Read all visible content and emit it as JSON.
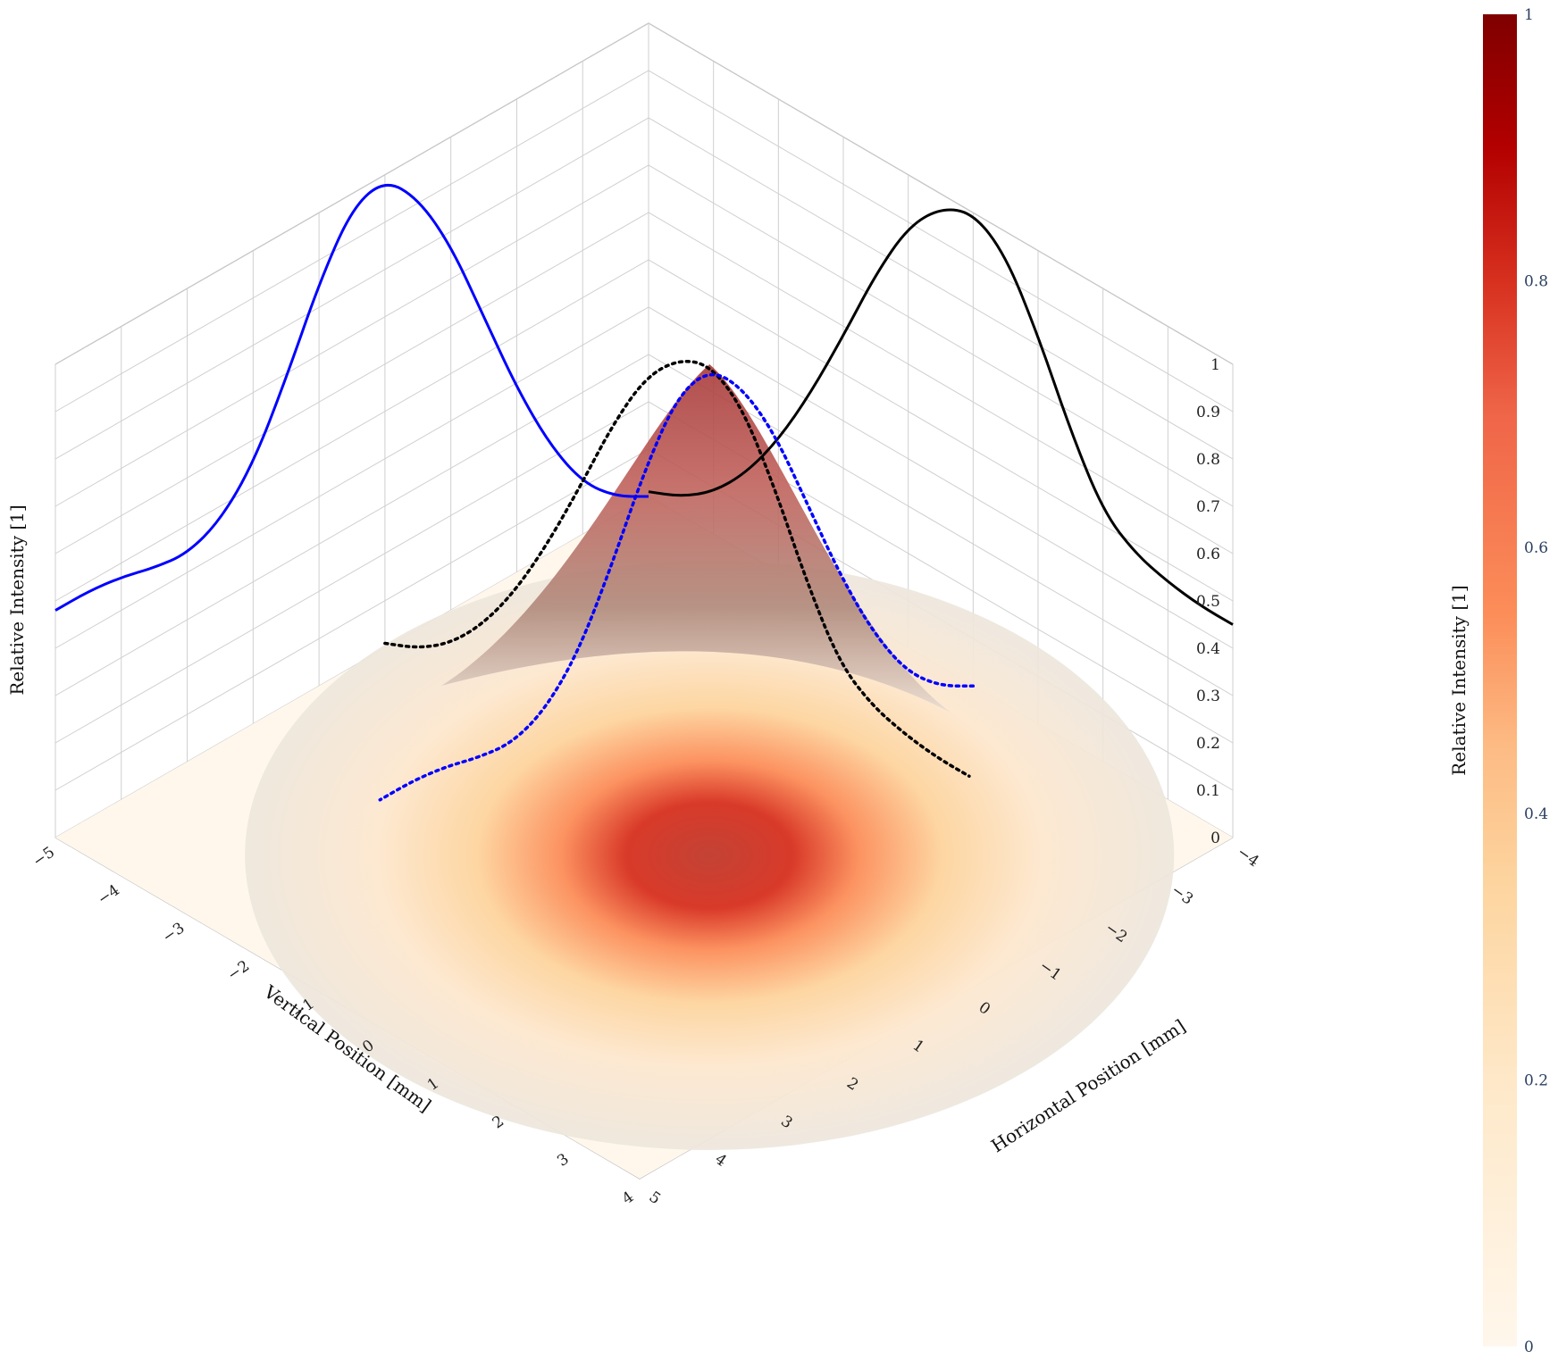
{
  "chart_data": {
    "type": "surface",
    "colorscale": "OrRd",
    "colors": {
      "vertical_profile": "#000000",
      "horizontal_profile": "#0000ff",
      "surface_shade": "#b06a60"
    },
    "axes": {
      "x": {
        "title": "Horizontal Position [mm]",
        "range": [
          -4,
          5
        ],
        "ticks": [
          "−4",
          "−3",
          "−2",
          "−1",
          "0",
          "1",
          "2",
          "3",
          "4",
          "5"
        ]
      },
      "y": {
        "title": "Vertical Position [mm]",
        "range": [
          -5,
          4
        ],
        "ticks": [
          "−5",
          "−4",
          "−3",
          "−2",
          "−1",
          "0",
          "1",
          "2",
          "3",
          "4"
        ]
      },
      "z": {
        "title": "Relative Intensity [1]",
        "range": [
          0,
          1
        ],
        "ticks": [
          "0",
          "0.1",
          "0.2",
          "0.3",
          "0.4",
          "0.5",
          "0.6",
          "0.7",
          "0.8",
          "0.9",
          "1"
        ]
      }
    },
    "colorbar": {
      "title": "Relative Intensity [1]",
      "range": [
        0,
        1
      ],
      "ticks": [
        "0",
        "0.2",
        "0.4",
        "0.6",
        "0.8",
        "1"
      ]
    },
    "series": [
      {
        "kind": "surface",
        "peak_intensity": 1.0,
        "peak_x": 0.0,
        "peak_y": 0.0,
        "sigma_x": 1.2,
        "sigma_y": 1.1
      },
      {
        "kind": "vertical-profile",
        "line": "solid",
        "y": [
          -5,
          -4.5,
          -4,
          -3.5,
          -3,
          -2.5,
          -2,
          -1.5,
          -1,
          -0.5,
          0,
          0.5,
          1,
          1.5,
          2,
          2.5,
          3,
          3.5,
          4
        ],
        "z": [
          0.01,
          0.04,
          0.09,
          0.17,
          0.28,
          0.42,
          0.58,
          0.75,
          0.89,
          0.97,
          1.0,
          0.95,
          0.82,
          0.66,
          0.53,
          0.48,
          0.46,
          0.45,
          0.45
        ]
      },
      {
        "kind": "horizontal-profile",
        "line": "solid",
        "x": [
          -4,
          -3.5,
          -3,
          -2.5,
          -2,
          -1.5,
          -1,
          -0.5,
          0,
          0.5,
          1,
          1.5,
          2,
          2.5,
          3,
          3.5,
          4,
          4.5,
          5
        ],
        "z": [
          0.0,
          0.04,
          0.11,
          0.23,
          0.39,
          0.58,
          0.77,
          0.91,
          0.99,
          0.97,
          0.85,
          0.69,
          0.55,
          0.47,
          0.44,
          0.45,
          0.47,
          0.48,
          0.48
        ]
      }
    ]
  }
}
